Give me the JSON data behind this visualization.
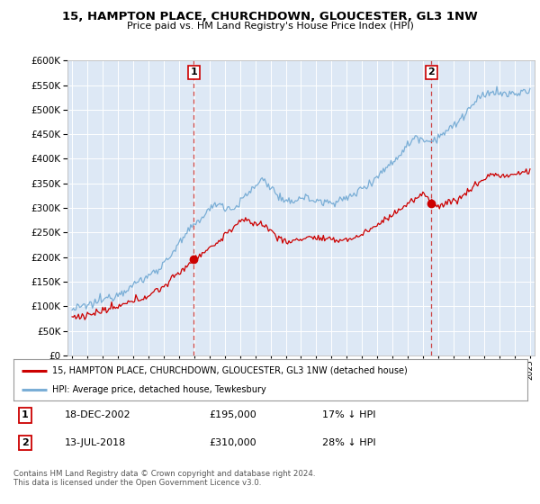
{
  "title": "15, HAMPTON PLACE, CHURCHDOWN, GLOUCESTER, GL3 1NW",
  "subtitle": "Price paid vs. HM Land Registry's House Price Index (HPI)",
  "legend_line1": "15, HAMPTON PLACE, CHURCHDOWN, GLOUCESTER, GL3 1NW (detached house)",
  "legend_line2": "HPI: Average price, detached house, Tewkesbury",
  "annotation1_label": "1",
  "annotation1_date": "18-DEC-2002",
  "annotation1_price": "£195,000",
  "annotation1_hpi": "17% ↓ HPI",
  "annotation1_year": 2002.97,
  "annotation1_value": 195000,
  "annotation2_label": "2",
  "annotation2_date": "13-JUL-2018",
  "annotation2_price": "£310,000",
  "annotation2_hpi": "28% ↓ HPI",
  "annotation2_year": 2018.54,
  "annotation2_value": 310000,
  "price_color": "#cc0000",
  "hpi_color": "#7aaed6",
  "background_color": "#ffffff",
  "plot_bg_color": "#dde8f5",
  "ylim_min": 0,
  "ylim_max": 600000,
  "xlim_start": 1994.7,
  "xlim_end": 2025.3,
  "footer1": "Contains HM Land Registry data © Crown copyright and database right 2024.",
  "footer2": "This data is licensed under the Open Government Licence v3.0."
}
